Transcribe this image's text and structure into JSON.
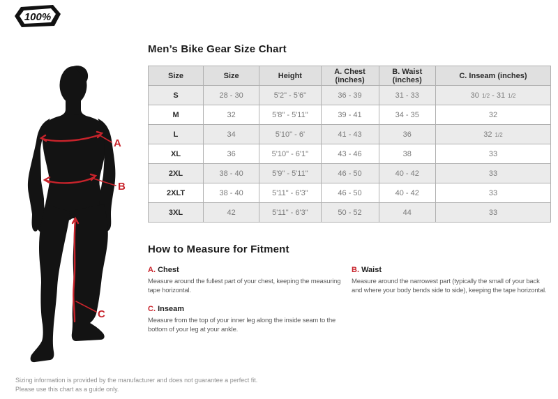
{
  "brand": {
    "logo_text": "100%"
  },
  "colors": {
    "accent_red": "#c8232b",
    "silhouette": "#131313",
    "table_header_bg": "#e0e0e0",
    "table_row_alt_bg": "#ebebeb"
  },
  "figure": {
    "labels": [
      {
        "id": "A",
        "points_to": "chest"
      },
      {
        "id": "B",
        "points_to": "waist"
      },
      {
        "id": "C",
        "points_to": "inseam"
      }
    ]
  },
  "size_chart": {
    "title": "Men’s Bike Gear Size Chart",
    "columns": [
      "Size",
      "Size",
      "Height",
      "A. Chest (inches)",
      "B. Waist (inches)",
      "C. Inseam (inches)"
    ],
    "rows": [
      [
        "S",
        "28 - 30",
        "5'2\" - 5'6\"",
        "36 - 39",
        "31 - 33",
        "30 1/2 - 31 1/2"
      ],
      [
        "M",
        "32",
        "5'8\" - 5'11\"",
        "39 - 41",
        "34 - 35",
        "32"
      ],
      [
        "L",
        "34",
        "5'10\" - 6'",
        "41 - 43",
        "36",
        "32 1/2"
      ],
      [
        "XL",
        "36",
        "5'10\" - 6'1\"",
        "43 - 46",
        "38",
        "33"
      ],
      [
        "2XL",
        "38 - 40",
        "5'9\" - 5'11\"",
        "46 - 50",
        "40 - 42",
        "33"
      ],
      [
        "2XLT",
        "38 - 40",
        "5'11\" - 6'3\"",
        "46 - 50",
        "40 - 42",
        "33"
      ],
      [
        "3XL",
        "42",
        "5'11\" - 6'3\"",
        "50 - 52",
        "44",
        "33"
      ]
    ]
  },
  "how_to_measure": {
    "title": "How to Measure for Fitment",
    "items": [
      {
        "letter": "A.",
        "name": "Chest",
        "description": "Measure around the fullest part of your chest, keeping the measuring tape horizontal."
      },
      {
        "letter": "B.",
        "name": "Waist",
        "description": "Measure around the narrowest part (typically the small of your back and where your body bends side to side), keeping the tape horizontal."
      },
      {
        "letter": "C.",
        "name": "Inseam",
        "description": "Measure from the top of your inner leg along the inside seam to the bottom of your leg at your ankle."
      }
    ]
  },
  "disclaimer": {
    "line1": "Sizing information is provided by the manufacturer and does not guarantee a perfect fit.",
    "line2": "Please use this chart as a guide only."
  }
}
